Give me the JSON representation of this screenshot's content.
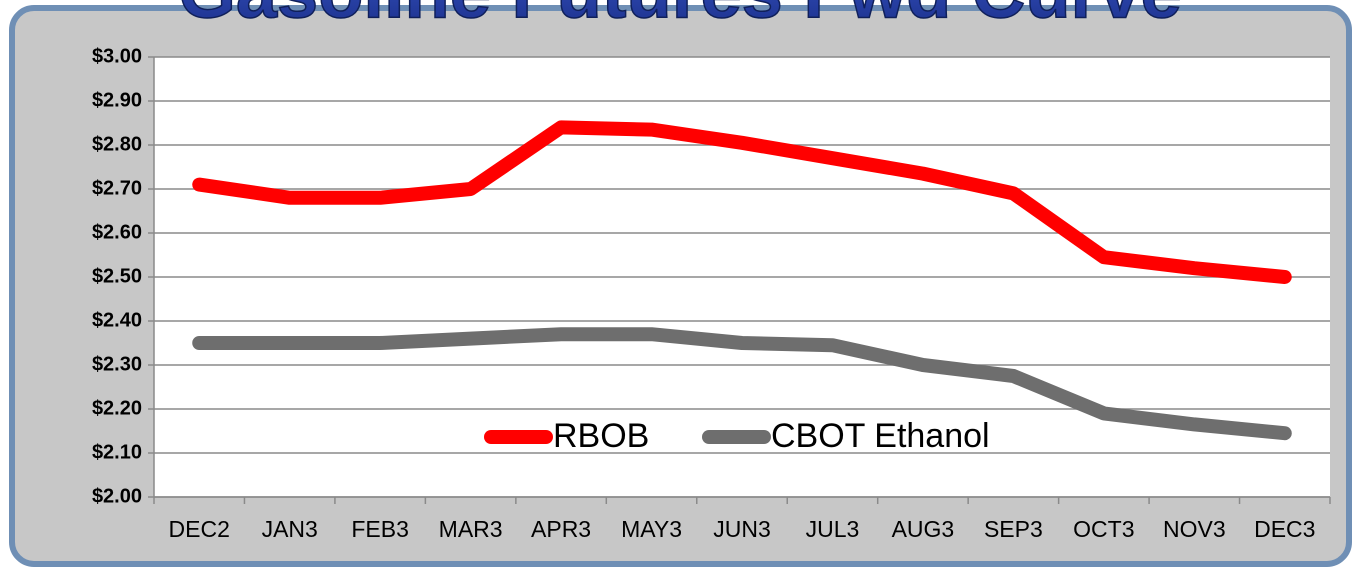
{
  "chart_data": {
    "type": "line",
    "title": "Gasoline Futures Fwd Curve",
    "categories": [
      "DEC2",
      "JAN3",
      "FEB3",
      "MAR3",
      "APR3",
      "MAY3",
      "JUN3",
      "JUL3",
      "AUG3",
      "SEP3",
      "OCT3",
      "NOV3",
      "DEC3"
    ],
    "series": [
      {
        "name": "RBOB",
        "color": "#ff0000",
        "values": [
          2.71,
          2.68,
          2.68,
          2.7,
          2.84,
          2.835,
          2.805,
          2.77,
          2.735,
          2.69,
          2.545,
          2.52,
          2.5
        ]
      },
      {
        "name": "CBOT Ethanol",
        "color": "#6e6e6e",
        "values": [
          2.35,
          2.35,
          2.35,
          2.36,
          2.37,
          2.37,
          2.35,
          2.345,
          2.3,
          2.275,
          2.19,
          2.165,
          2.145
        ]
      }
    ],
    "ylim": [
      2.0,
      3.0
    ],
    "yticks": [
      {
        "value": 2.0,
        "label": "$2.00"
      },
      {
        "value": 2.1,
        "label": "$2.10"
      },
      {
        "value": 2.2,
        "label": "$2.20"
      },
      {
        "value": 2.3,
        "label": "$2.30"
      },
      {
        "value": 2.4,
        "label": "$2.40"
      },
      {
        "value": 2.5,
        "label": "$2.50"
      },
      {
        "value": 2.6,
        "label": "$2.60"
      },
      {
        "value": 2.7,
        "label": "$2.70"
      },
      {
        "value": 2.8,
        "label": "$2.80"
      },
      {
        "value": 2.9,
        "label": "$2.90"
      },
      {
        "value": 3.0,
        "label": "$3.00"
      }
    ],
    "grid": true,
    "legend": "lower center"
  }
}
